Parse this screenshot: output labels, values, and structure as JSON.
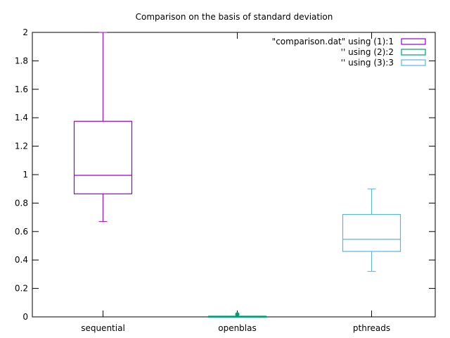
{
  "chart_data": {
    "type": "box",
    "title": "Comparison on the basis of standard deviation",
    "xlabel": "",
    "ylabel": "",
    "ylim": [
      0,
      2
    ],
    "yticks": [
      0,
      0.2,
      0.4,
      0.6,
      0.8,
      1,
      1.2,
      1.4,
      1.6,
      1.8,
      2
    ],
    "ytick_labels": [
      "0",
      "0.2",
      "0.4",
      "0.6",
      "0.8",
      "1",
      "1.2",
      "1.4",
      "1.6",
      "1.8",
      "2"
    ],
    "categories": [
      "sequential",
      "openblas",
      "pthreads"
    ],
    "grid": false,
    "legend_position": "top-right",
    "series": [
      {
        "name": "\"comparison.dat\" using (1):1",
        "color": "#9400d3",
        "min": 0.67,
        "q1": 0.865,
        "median": 0.995,
        "q3": 1.375,
        "max": 2.0,
        "outliers": []
      },
      {
        "name": "'' using (2):2",
        "color": "#009e73",
        "min": 0.0,
        "q1": 0.0,
        "median": 0.002,
        "q3": 0.005,
        "max": 0.005,
        "outliers": [
          0.018
        ]
      },
      {
        "name": "'' using (3):3",
        "color": "#56b4e9",
        "min": 0.32,
        "q1": 0.46,
        "median": 0.545,
        "q3": 0.72,
        "max": 0.9,
        "outliers": []
      }
    ]
  }
}
